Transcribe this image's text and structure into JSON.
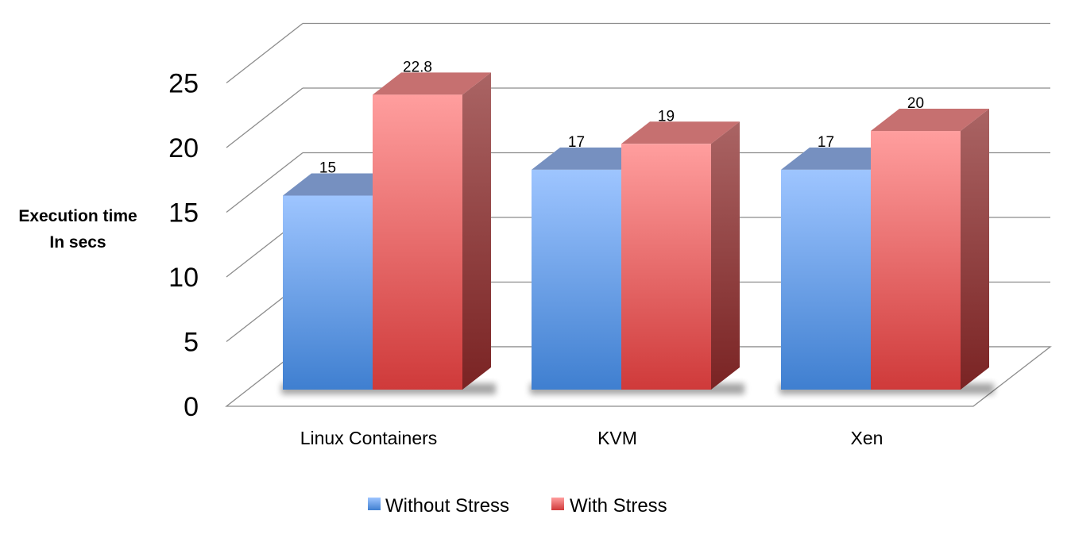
{
  "chart_data": {
    "type": "bar",
    "title": "",
    "xlabel": "",
    "ylabel_lines": [
      "Execution time",
      "In secs"
    ],
    "categories": [
      "Linux Containers",
      "KVM",
      "Xen"
    ],
    "series": [
      {
        "name": "Without Stress",
        "values": [
          15,
          17,
          17
        ],
        "color": "#5b95e0"
      },
      {
        "name": "With Stress",
        "values": [
          22.8,
          19,
          20
        ],
        "color": "#e05252"
      }
    ],
    "data_labels": [
      [
        "15",
        "17",
        "17"
      ],
      [
        "22.8",
        "19",
        "20"
      ]
    ],
    "ylim": [
      0,
      25
    ],
    "yticks": [
      0,
      5,
      10,
      15,
      20,
      25
    ],
    "grid": true,
    "legend": "bottom",
    "style": "3d-clustered-column"
  }
}
